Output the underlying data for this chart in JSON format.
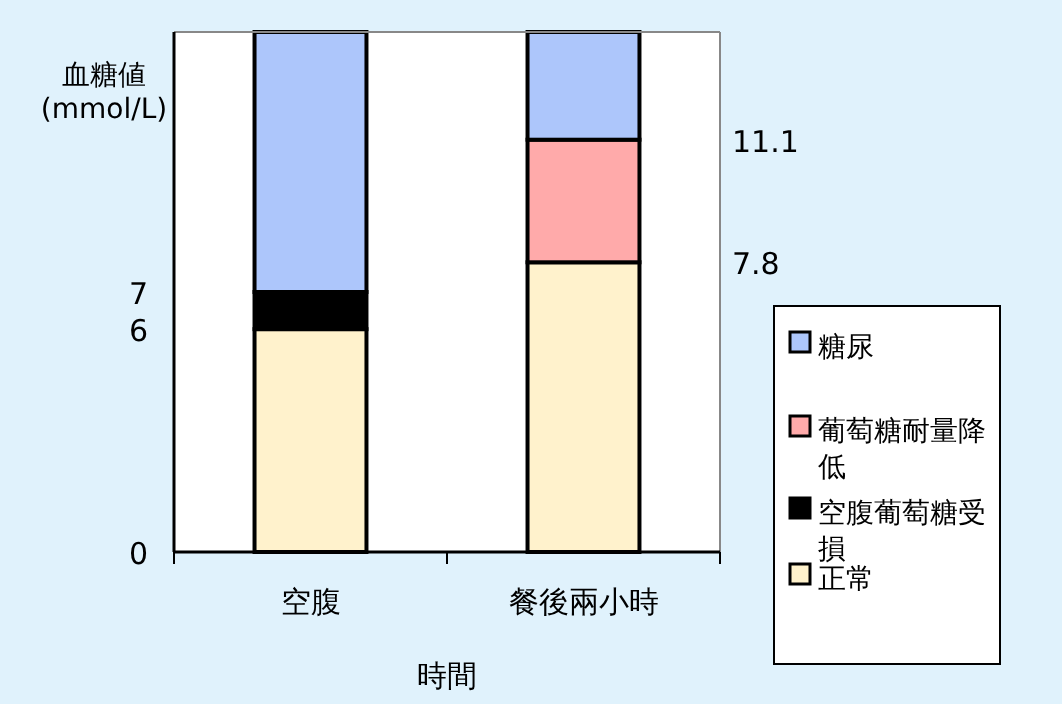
{
  "chart_data": {
    "type": "bar",
    "stacked": true,
    "xlabel": "時間",
    "ylabel": "血糖値 (mmol/L)",
    "categories": [
      "空腹",
      "餐後兩小時"
    ],
    "series": [
      {
        "name": "正常",
        "color": "#fff2cc",
        "values": [
          6,
          7.8
        ]
      },
      {
        "name": "空腹葡萄糖受損",
        "color": "#000000",
        "values": [
          1,
          null
        ]
      },
      {
        "name": "葡萄糖耐量降低",
        "color": "#ffaaaa",
        "values": [
          null,
          3.3
        ]
      },
      {
        "name": "糖尿",
        "color": "#adc6fb",
        "values": [
          7,
          2.9
        ]
      }
    ],
    "ylim": [
      0,
      14
    ],
    "yticks": [
      0,
      6,
      7
    ],
    "y2lim": [
      0,
      14
    ],
    "y2ticks": [
      7.8,
      11.1
    ],
    "legend": "right",
    "grid": false
  }
}
